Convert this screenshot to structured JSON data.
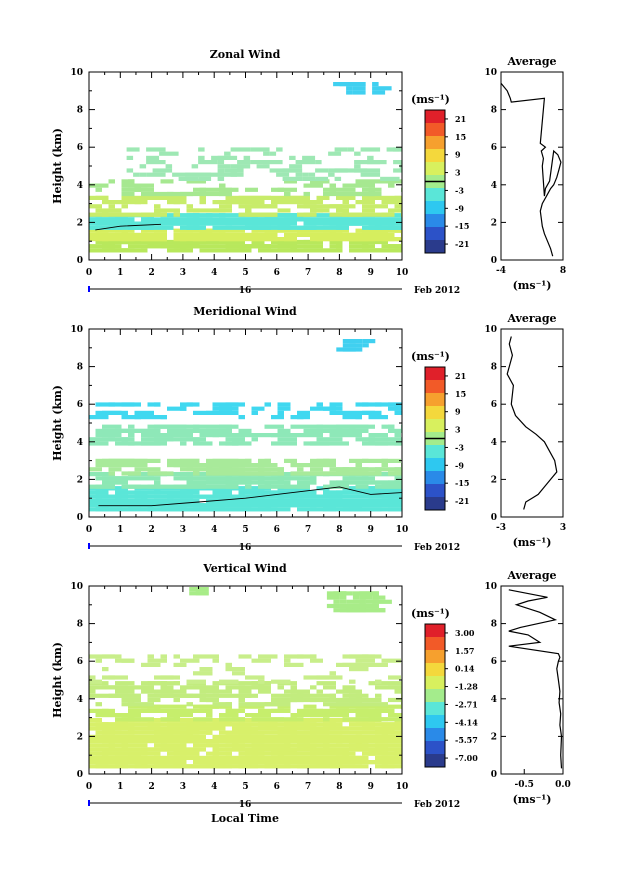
{
  "common": {
    "ylabel": "Height (km)",
    "xlim": [
      0,
      10
    ],
    "ylim": [
      0,
      10
    ],
    "xticks": [
      "0",
      "1",
      "2",
      "3",
      "4",
      "5",
      "6",
      "7",
      "8",
      "9",
      "10"
    ],
    "yticks": [
      "0",
      "2",
      "4",
      "6",
      "8",
      "10"
    ],
    "day_label": "16",
    "date_label": "Feb 2012",
    "unit_label": "(ms⁻¹)",
    "avg_title": "Average",
    "xlabel_bottom": "Local Time"
  },
  "chart_data": [
    {
      "type": "heatmap",
      "title": "Zonal Wind",
      "colorbar_ticks": [
        "21",
        "15",
        "9",
        "3",
        "-3",
        "-9",
        "-15",
        "-21"
      ],
      "colorbar_range": [
        -21,
        21
      ],
      "colorbar_zero_line": 0,
      "bands": [
        {
          "y0": 0.4,
          "y1": 1.0,
          "x0": 0.0,
          "x1": 10.0,
          "color": "#b8e85c",
          "density": 0.75
        },
        {
          "y0": 1.0,
          "y1": 1.6,
          "x0": 0.0,
          "x1": 10.0,
          "color": "#d6ee5e",
          "density": 0.8
        },
        {
          "y0": 1.6,
          "y1": 2.3,
          "x0": 0.0,
          "x1": 10.0,
          "color": "#5ae6d8",
          "density": 0.8
        },
        {
          "y0": 2.3,
          "y1": 3.4,
          "x0": 0.0,
          "x1": 10.0,
          "color": "#c8ec6a",
          "density": 0.45
        },
        {
          "y0": 3.4,
          "y1": 4.2,
          "x0": 0.0,
          "x1": 10.0,
          "color": "#a6e890",
          "density": 0.3
        },
        {
          "y0": 4.2,
          "y1": 5.8,
          "x0": 1.2,
          "x1": 10.0,
          "color": "#9ee8b4",
          "density": 0.25
        },
        {
          "y0": 8.8,
          "y1": 9.4,
          "x0": 7.8,
          "x1": 9.2,
          "color": "#40d0f0",
          "density": 0.5
        }
      ],
      "contour": [
        [
          0.2,
          1.6
        ],
        [
          1.0,
          1.8
        ],
        [
          2.3,
          1.9
        ]
      ],
      "average_profile": {
        "xlim": [
          -4,
          8
        ],
        "xticks": [
          "-4",
          "8"
        ],
        "xlabel": "(ms⁻¹)",
        "x": [
          6.0,
          5.6,
          5.0,
          4.4,
          4.0,
          3.8,
          3.6,
          4.0,
          4.8,
          5.6,
          6.2,
          6.8,
          7.2,
          7.6,
          7.0,
          6.2,
          5.4,
          4.6,
          4.4,
          4.0,
          4.2,
          3.8,
          4.6,
          3.6,
          4.4,
          -2.0,
          -2.2,
          -2.8,
          -4.0
        ],
        "h": [
          0.2,
          0.6,
          1.0,
          1.4,
          1.8,
          2.2,
          2.6,
          3.0,
          3.4,
          3.8,
          4.0,
          4.4,
          4.8,
          5.2,
          5.6,
          5.8,
          4.2,
          3.8,
          3.4,
          5.0,
          5.4,
          5.8,
          6.0,
          6.2,
          8.6,
          8.4,
          8.6,
          9.0,
          9.4
        ]
      }
    },
    {
      "type": "heatmap",
      "title": "Meridional Wind",
      "colorbar_ticks": [
        "21",
        "15",
        "9",
        "3",
        "-3",
        "-9",
        "-15",
        "-21"
      ],
      "colorbar_range": [
        -21,
        21
      ],
      "colorbar_zero_line": 0,
      "bands": [
        {
          "y0": 0.3,
          "y1": 1.5,
          "x0": 0.0,
          "x1": 10.0,
          "color": "#5ae6d8",
          "density": 0.8
        },
        {
          "y0": 1.5,
          "y1": 2.2,
          "x0": 0.0,
          "x1": 10.0,
          "color": "#8ce8b4",
          "density": 0.7
        },
        {
          "y0": 2.2,
          "y1": 3.0,
          "x0": 0.0,
          "x1": 10.0,
          "color": "#a8ea9a",
          "density": 0.55
        },
        {
          "y0": 3.8,
          "y1": 4.9,
          "x0": 0.0,
          "x1": 10.0,
          "color": "#8ee8b8",
          "density": 0.55
        },
        {
          "y0": 5.2,
          "y1": 6.0,
          "x0": 0.0,
          "x1": 10.0,
          "color": "#40d8f0",
          "density": 0.3
        },
        {
          "y0": 8.8,
          "y1": 9.4,
          "x0": 7.9,
          "x1": 8.8,
          "color": "#40d0f0",
          "density": 0.5
        }
      ],
      "contour": [
        [
          0.3,
          0.6
        ],
        [
          2.0,
          0.6
        ],
        [
          3.5,
          0.8
        ],
        [
          5.0,
          1.0
        ],
        [
          6.5,
          1.3
        ],
        [
          8.0,
          1.6
        ],
        [
          9.0,
          1.2
        ],
        [
          10.0,
          1.3
        ]
      ],
      "average_profile": {
        "xlim": [
          -3,
          3
        ],
        "xticks": [
          "-3",
          "3"
        ],
        "xlabel": "(ms⁻¹)",
        "x": [
          -0.8,
          -0.6,
          0.0,
          0.6,
          1.2,
          1.8,
          2.4,
          2.2,
          1.6,
          1.2,
          0.4,
          -0.6,
          -1.6,
          -2.0,
          -1.8,
          -2.4,
          -1.9,
          -2.2,
          -2.0
        ],
        "h": [
          0.4,
          0.8,
          1.0,
          1.2,
          1.6,
          2.0,
          2.4,
          3.0,
          3.6,
          4.0,
          4.4,
          4.8,
          5.4,
          6.0,
          7.0,
          7.6,
          8.6,
          9.2,
          9.6
        ]
      }
    },
    {
      "type": "heatmap",
      "title": "Vertical Wind",
      "colorbar_ticks": [
        "3.00",
        "1.57",
        "0.14",
        "-1.28",
        "-2.71",
        "-4.14",
        "-5.57",
        "-7.00"
      ],
      "colorbar_range": [
        -7.0,
        3.0
      ],
      "colorbar_zero_line": null,
      "bands": [
        {
          "y0": 0.3,
          "y1": 2.8,
          "x0": 0.0,
          "x1": 10.0,
          "color": "#d8f06a",
          "density": 0.88
        },
        {
          "y0": 2.8,
          "y1": 3.6,
          "x0": 0.0,
          "x1": 10.0,
          "color": "#c6ee6c",
          "density": 0.55
        },
        {
          "y0": 3.6,
          "y1": 4.8,
          "x0": 0.0,
          "x1": 10.0,
          "color": "#c2ec7e",
          "density": 0.45
        },
        {
          "y0": 4.8,
          "y1": 6.2,
          "x0": 0.0,
          "x1": 10.0,
          "color": "#c8ee8a",
          "density": 0.2
        },
        {
          "y0": 8.6,
          "y1": 9.6,
          "x0": 7.6,
          "x1": 9.2,
          "color": "#a8ec88",
          "density": 0.7
        },
        {
          "y0": 9.5,
          "y1": 9.9,
          "x0": 3.2,
          "x1": 3.8,
          "color": "#a8ec88",
          "density": 0.9
        }
      ],
      "contour": [],
      "average_profile": {
        "xlim": [
          -0.8,
          0.0
        ],
        "xticks": [
          "-0.5",
          "0.0"
        ],
        "xlabel": "(ms⁻¹)",
        "x": [
          -0.02,
          -0.03,
          -0.02,
          -0.04,
          -0.03,
          -0.05,
          -0.04,
          -0.06,
          -0.08,
          -0.06,
          -0.04,
          -0.06,
          -0.7,
          -0.3,
          -0.45,
          -0.7,
          -0.55,
          -0.1,
          -0.3,
          -0.6,
          -0.45,
          -0.2,
          -0.7
        ],
        "h": [
          0.3,
          1.0,
          2.0,
          2.6,
          3.2,
          3.8,
          4.4,
          5.0,
          5.6,
          6.0,
          6.2,
          6.4,
          6.8,
          7.0,
          7.4,
          7.6,
          7.8,
          8.2,
          8.6,
          9.0,
          9.2,
          9.4,
          9.8
        ]
      }
    }
  ]
}
